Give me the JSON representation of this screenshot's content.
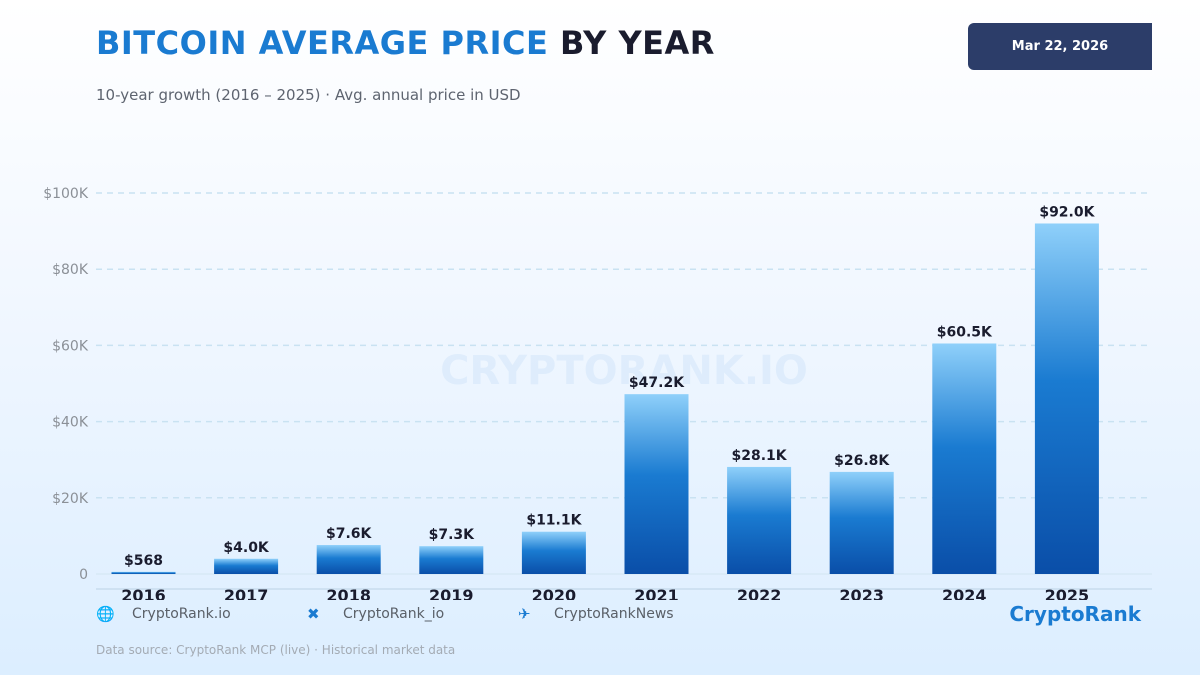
{
  "header": {
    "title_highlight": "BITCOIN AVERAGE PRICE",
    "title_rest": "BY YEAR",
    "subtitle": "10-year growth (2016 – 2025)  ·  Avg. annual price in USD",
    "date": "Mar 22, 2026"
  },
  "watermark": "CRYPTORANK.IO",
  "chart_data": {
    "type": "bar",
    "title": "BITCOIN AVERAGE PRICE BY YEAR",
    "categories": [
      "2016",
      "2017",
      "2018",
      "2019",
      "2020",
      "2021",
      "2022",
      "2023",
      "2024",
      "2025"
    ],
    "values": [
      568,
      4000,
      7600,
      7300,
      11100,
      47200,
      28100,
      26800,
      60500,
      92000
    ],
    "value_labels": [
      "$568",
      "$4.0K",
      "$7.6K",
      "$7.3K",
      "$11.1K",
      "$47.2K",
      "$28.1K",
      "$26.8K",
      "$60.5K",
      "$92.0K"
    ],
    "yticks": [
      0,
      20000,
      40000,
      60000,
      80000,
      100000
    ],
    "ytick_labels": [
      "0",
      "$20K",
      "$40K",
      "$60K",
      "$80K",
      "$100K"
    ],
    "ylim": [
      0,
      100000
    ],
    "grid": true,
    "colors": {
      "bar_top": "#8fd0fa",
      "bar_mid": "#1a7bd1",
      "bar_bottom": "#0a4ea8",
      "grid": "#c9e2f2",
      "axis_label": "#8b9097",
      "value_label": "#1a1c2e"
    }
  },
  "footer": {
    "links": [
      {
        "icon": "globe-icon",
        "glyph": "🌐",
        "label": "CryptoRank.io"
      },
      {
        "icon": "x-twitter-icon",
        "glyph": "✖",
        "label": "CryptoRank_io"
      },
      {
        "icon": "telegram-icon",
        "glyph": "✈",
        "label": "CryptoRankNews"
      }
    ],
    "brand": "CryptoRank",
    "source": "Data source: CryptoRank MCP (live) · Historical market data"
  }
}
